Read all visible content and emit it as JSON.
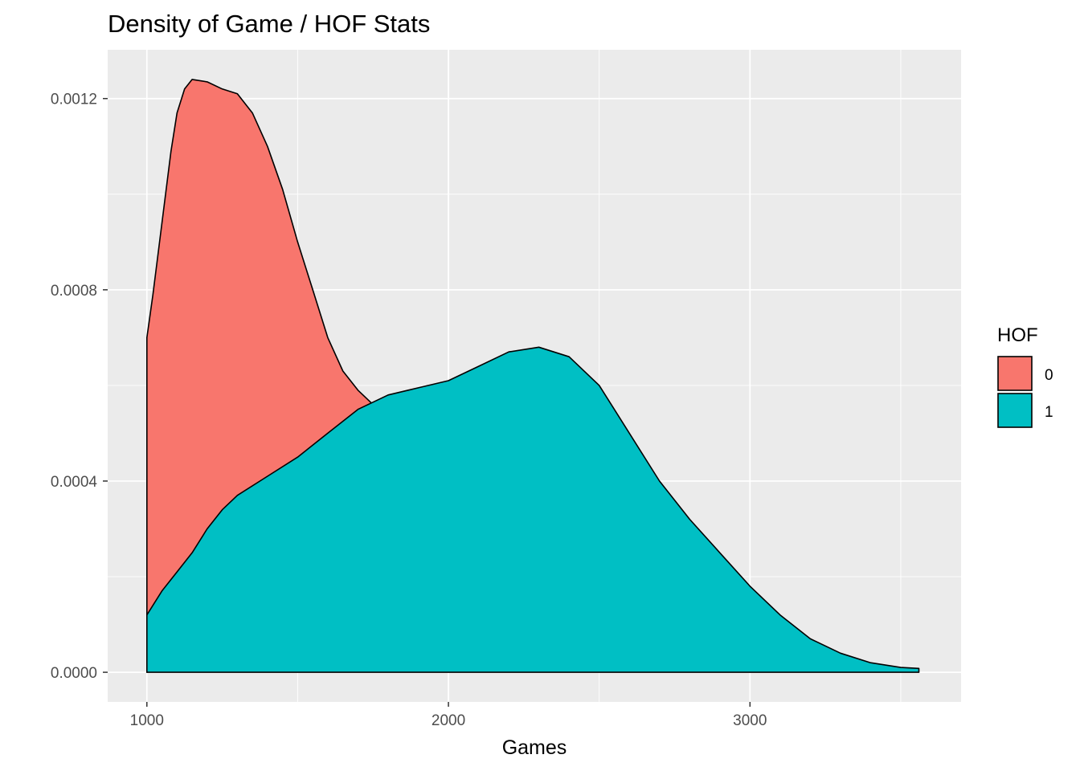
{
  "chart_data": {
    "type": "area",
    "title": "Density of Game / HOF Stats",
    "xlabel": "Games",
    "ylabel": "",
    "xlim": [
      870,
      3700
    ],
    "ylim": [
      -6.2e-05,
      0.001302
    ],
    "x_ticks": [
      1000,
      2000,
      3000
    ],
    "x_minor": [
      1500,
      2500,
      3500
    ],
    "y_ticks": [
      0.0,
      0.0004,
      0.0008,
      0.0012
    ],
    "y_tick_labels": [
      "0.0000",
      "0.0004",
      "0.0008",
      "0.0012"
    ],
    "y_minor": [
      0.0002,
      0.0006,
      0.001
    ],
    "grid": true,
    "legend": {
      "title": "HOF",
      "position": "right"
    },
    "colors": {
      "panel": "#ebebeb",
      "grid": "#ffffff",
      "outline": "#000000"
    },
    "series": [
      {
        "name": "0",
        "color": "#F8766D",
        "points": [
          [
            1000,
            0.0
          ],
          [
            1000,
            0.0007
          ],
          [
            1020,
            0.00079
          ],
          [
            1040,
            0.00089
          ],
          [
            1060,
            0.00099
          ],
          [
            1080,
            0.00109
          ],
          [
            1100,
            0.00117
          ],
          [
            1125,
            0.00122
          ],
          [
            1150,
            0.00124
          ],
          [
            1200,
            0.001235
          ],
          [
            1250,
            0.00122
          ],
          [
            1300,
            0.00121
          ],
          [
            1350,
            0.00117
          ],
          [
            1400,
            0.0011
          ],
          [
            1450,
            0.00101
          ],
          [
            1500,
            0.0009
          ],
          [
            1550,
            0.0008
          ],
          [
            1600,
            0.0007
          ],
          [
            1650,
            0.00063
          ],
          [
            1700,
            0.00059
          ],
          [
            1750,
            0.00056
          ],
          [
            1800,
            0.00054
          ]
        ]
      },
      {
        "name": "1",
        "color": "#00BFC4",
        "points": [
          [
            1000,
            0.0
          ],
          [
            1000,
            0.00012
          ],
          [
            1050,
            0.00017
          ],
          [
            1100,
            0.00021
          ],
          [
            1150,
            0.00025
          ],
          [
            1200,
            0.0003
          ],
          [
            1250,
            0.00034
          ],
          [
            1300,
            0.00037
          ],
          [
            1400,
            0.00041
          ],
          [
            1500,
            0.00045
          ],
          [
            1600,
            0.0005
          ],
          [
            1700,
            0.00055
          ],
          [
            1800,
            0.00058
          ],
          [
            1900,
            0.000595
          ],
          [
            2000,
            0.00061
          ],
          [
            2100,
            0.00064
          ],
          [
            2200,
            0.00067
          ],
          [
            2300,
            0.00068
          ],
          [
            2400,
            0.00066
          ],
          [
            2500,
            0.0006
          ],
          [
            2600,
            0.0005
          ],
          [
            2700,
            0.0004
          ],
          [
            2800,
            0.00032
          ],
          [
            2900,
            0.00025
          ],
          [
            3000,
            0.00018
          ],
          [
            3100,
            0.00012
          ],
          [
            3200,
            7e-05
          ],
          [
            3300,
            4e-05
          ],
          [
            3400,
            2e-05
          ],
          [
            3500,
            1e-05
          ],
          [
            3560,
            8e-06
          ],
          [
            3560,
            0.0
          ]
        ]
      }
    ]
  }
}
